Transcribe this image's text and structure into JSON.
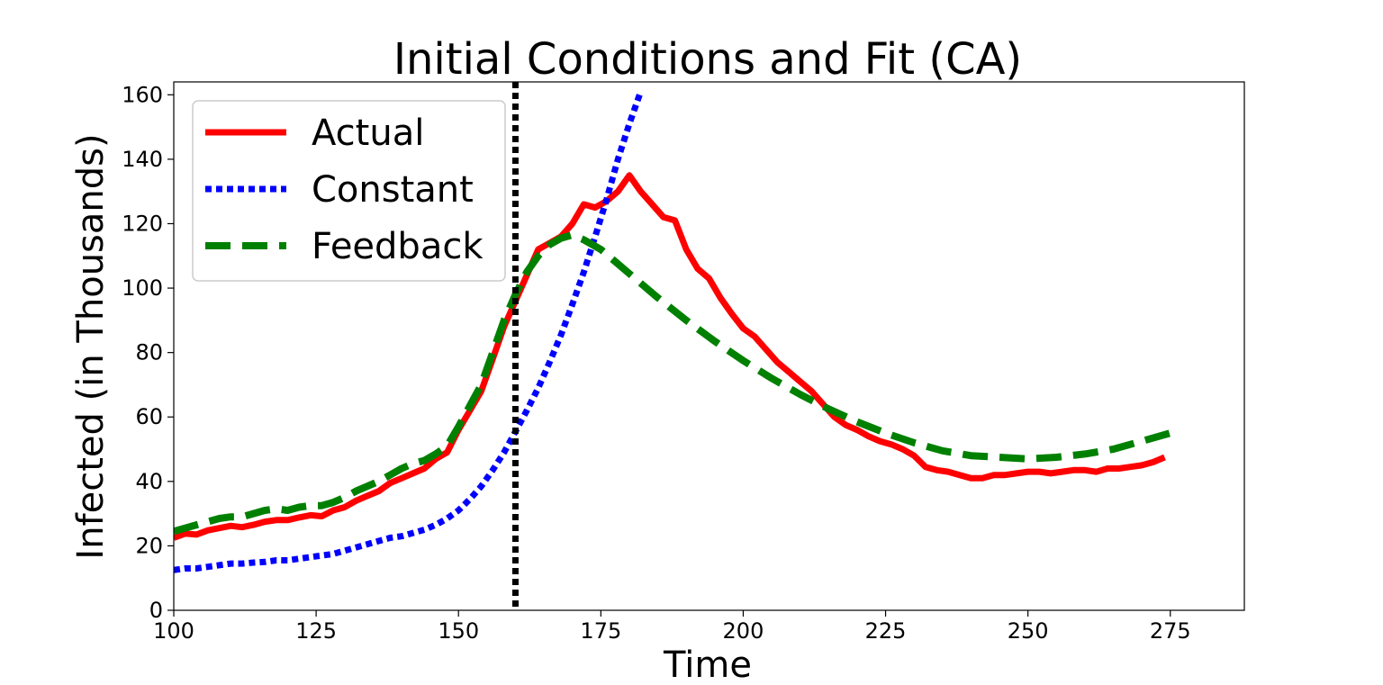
{
  "chart_data": {
    "type": "line",
    "title": "Initial Conditions and Fit (CA)",
    "xlabel": "Time",
    "ylabel": "Infected (in Thousands)",
    "xlim": [
      100,
      288
    ],
    "ylim": [
      0,
      164
    ],
    "xticks": [
      100,
      125,
      150,
      175,
      200,
      225,
      250,
      275
    ],
    "yticks": [
      0,
      20,
      40,
      60,
      80,
      100,
      120,
      140,
      160
    ],
    "legend_position": "upper-left",
    "grid": false,
    "vertical_line": {
      "x": 160,
      "style": "dotted",
      "color": "#000000"
    },
    "series": [
      {
        "name": "Actual",
        "color": "#ff0000",
        "style": "solid",
        "x": [
          100,
          102,
          104,
          106,
          108,
          110,
          112,
          114,
          116,
          118,
          120,
          122,
          124,
          126,
          128,
          130,
          132,
          134,
          136,
          138,
          140,
          142,
          144,
          146,
          148,
          150,
          152,
          154,
          156,
          158,
          160,
          162,
          164,
          166,
          168,
          170,
          172,
          174,
          176,
          178,
          180,
          182,
          184,
          186,
          188,
          190,
          192,
          194,
          196,
          198,
          200,
          202,
          204,
          206,
          208,
          210,
          212,
          214,
          216,
          218,
          220,
          222,
          224,
          226,
          228,
          230,
          232,
          234,
          236,
          238,
          240,
          242,
          244,
          246,
          248,
          250,
          252,
          254,
          256,
          258,
          260,
          262,
          264,
          266,
          268,
          270,
          272,
          274
        ],
        "y": [
          22.5,
          23.8,
          23.5,
          24.8,
          25.5,
          26.2,
          25.8,
          26.5,
          27.5,
          28.0,
          28.0,
          28.8,
          29.5,
          29.2,
          31.0,
          32.0,
          34.0,
          35.5,
          37.0,
          39.5,
          41.0,
          42.5,
          44.0,
          47.0,
          49.0,
          56.0,
          62.0,
          68.0,
          78.0,
          88.0,
          96.0,
          104.0,
          112.0,
          114.0,
          116.0,
          120.0,
          126.0,
          125.0,
          127.0,
          130.0,
          135.0,
          130.0,
          126.0,
          122.0,
          121.0,
          112.0,
          106.0,
          103.0,
          97.0,
          92.0,
          87.5,
          85.0,
          81.0,
          77.0,
          74.0,
          71.0,
          68.0,
          64.0,
          60.0,
          57.5,
          56.0,
          54.0,
          52.5,
          51.5,
          50.0,
          48.0,
          44.5,
          43.5,
          43.0,
          42.0,
          41.0,
          41.0,
          42.0,
          42.0,
          42.5,
          43.0,
          43.0,
          42.5,
          43.0,
          43.5,
          43.5,
          43.0,
          44.0,
          44.0,
          44.5,
          45.0,
          46.0,
          47.5
        ]
      },
      {
        "name": "Constant",
        "color": "#0000ff",
        "style": "dotted",
        "x": [
          100,
          102,
          104,
          106,
          108,
          110,
          112,
          114,
          116,
          118,
          120,
          122,
          124,
          126,
          128,
          130,
          132,
          134,
          136,
          138,
          140,
          142,
          144,
          146,
          148,
          150,
          152,
          154,
          156,
          158,
          160,
          162,
          164,
          166,
          168,
          170,
          172,
          174,
          176,
          178,
          180,
          182
        ],
        "y": [
          12.5,
          13.0,
          13.0,
          13.5,
          14.0,
          14.5,
          14.5,
          14.8,
          15.0,
          15.5,
          15.5,
          16.0,
          16.5,
          17.0,
          17.5,
          18.5,
          19.5,
          20.5,
          21.5,
          22.5,
          23.0,
          24.0,
          25.0,
          26.5,
          28.5,
          31.0,
          34.5,
          38.5,
          43.5,
          49.0,
          55.5,
          62.0,
          69.0,
          77.0,
          85.5,
          95.0,
          105.0,
          116.0,
          127.5,
          140.0,
          151.0,
          161.0
        ]
      },
      {
        "name": "Feedback",
        "color": "#008000",
        "style": "dashed",
        "x": [
          100,
          102,
          104,
          106,
          108,
          110,
          112,
          114,
          116,
          118,
          120,
          122,
          124,
          126,
          128,
          130,
          132,
          134,
          136,
          138,
          140,
          142,
          144,
          146,
          148,
          150,
          152,
          154,
          156,
          158,
          160,
          162,
          164,
          166,
          168,
          170,
          172,
          175,
          180,
          185,
          190,
          195,
          200,
          205,
          210,
          215,
          220,
          225,
          230,
          235,
          240,
          245,
          250,
          255,
          260,
          265,
          270,
          275
        ],
        "y": [
          24.5,
          25.5,
          26.5,
          27.5,
          28.5,
          29.0,
          29.0,
          30.0,
          31.0,
          31.5,
          31.0,
          32.0,
          32.5,
          32.5,
          33.5,
          35.0,
          37.0,
          38.5,
          40.0,
          42.0,
          44.0,
          45.5,
          46.5,
          48.5,
          51.0,
          57.0,
          63.5,
          70.0,
          80.0,
          90.0,
          98.0,
          105.0,
          110.0,
          113.5,
          115.5,
          116.5,
          115.0,
          112.0,
          104.5,
          97.0,
          90.0,
          83.5,
          77.5,
          72.0,
          67.0,
          62.5,
          58.5,
          55.0,
          52.0,
          49.5,
          48.0,
          47.5,
          47.0,
          47.5,
          48.5,
          50.0,
          52.5,
          55.0
        ]
      }
    ]
  }
}
